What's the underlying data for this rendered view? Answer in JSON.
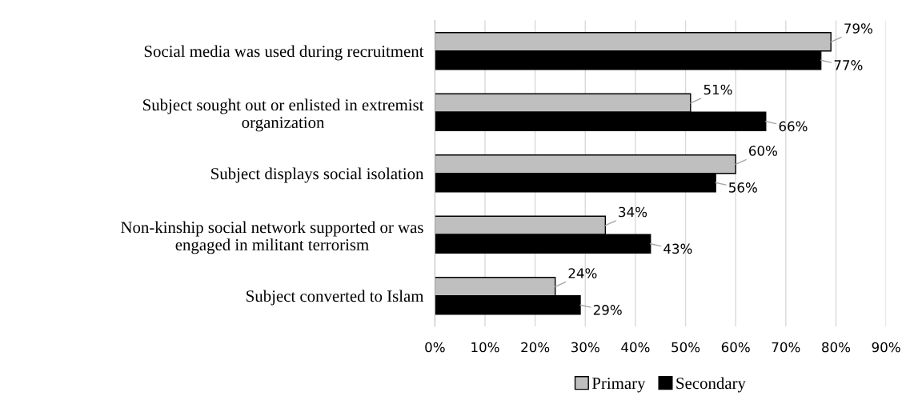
{
  "chart_data": {
    "type": "bar",
    "orientation": "horizontal",
    "categories": [
      "Social media was used during recruitment",
      "Subject sought out or enlisted in extremist\norganization",
      "Subject displays social isolation",
      "Non-kinship social network supported or was\nengaged in militant terrorism",
      "Subject converted to Islam"
    ],
    "series": [
      {
        "name": "Primary",
        "color": "#bfbfbf",
        "values": [
          79,
          51,
          60,
          34,
          24
        ],
        "value_labels": [
          "79%",
          "51%",
          "60%",
          "34%",
          "24%"
        ]
      },
      {
        "name": "Secondary",
        "color": "#000000",
        "values": [
          77,
          66,
          56,
          43,
          29
        ],
        "value_labels": [
          "77%",
          "66%",
          "56%",
          "43%",
          "29%"
        ]
      }
    ],
    "xlim": [
      0,
      90
    ],
    "xticks": [
      {
        "value": 0,
        "label": "0%"
      },
      {
        "value": 10,
        "label": "10%"
      },
      {
        "value": 20,
        "label": "20%"
      },
      {
        "value": 30,
        "label": "30%"
      },
      {
        "value": 40,
        "label": "40%"
      },
      {
        "value": 50,
        "label": "50%"
      },
      {
        "value": 60,
        "label": "60%"
      },
      {
        "value": 70,
        "label": "70%"
      },
      {
        "value": 80,
        "label": "80%"
      },
      {
        "value": 90,
        "label": "90%"
      }
    ],
    "grid": "x",
    "legend": "bottom"
  }
}
